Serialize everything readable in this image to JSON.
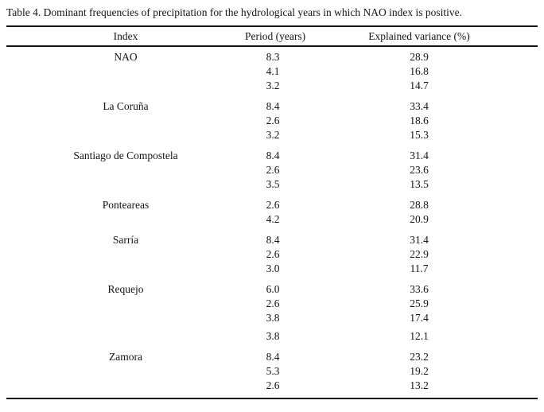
{
  "title": "Table 4. Dominant frequencies of precipitation for the hydrological years in which NAO index is positive.",
  "table": {
    "columns": [
      "Index",
      "Period (years)",
      "Explained variance (%)"
    ],
    "groups": [
      {
        "index": "NAO",
        "rows": [
          {
            "period": "8.3",
            "variance": "28.9"
          },
          {
            "period": "4.1",
            "variance": "16.8"
          },
          {
            "period": "3.2",
            "variance": "14.7"
          }
        ]
      },
      {
        "index": "La Coruña",
        "rows": [
          {
            "period": "8.4",
            "variance": "33.4"
          },
          {
            "period": "2.6",
            "variance": "18.6"
          },
          {
            "period": "3.2",
            "variance": "15.3"
          }
        ]
      },
      {
        "index": "Santiago de Compostela",
        "rows": [
          {
            "period": "8.4",
            "variance": "31.4"
          },
          {
            "period": "2.6",
            "variance": "23.6"
          },
          {
            "period": "3.5",
            "variance": "13.5"
          }
        ]
      },
      {
        "index": "Ponteareas",
        "rows": [
          {
            "period": "2.6",
            "variance": "28.8"
          },
          {
            "period": "4.2",
            "variance": "20.9"
          }
        ]
      },
      {
        "index": "Sarría",
        "rows": [
          {
            "period": "8.4",
            "variance": "31.4"
          },
          {
            "period": "2.6",
            "variance": "22.9"
          },
          {
            "period": "3.0",
            "variance": "11.7"
          }
        ]
      },
      {
        "index": "Requejo",
        "rows": [
          {
            "period": "6.0",
            "variance": "33.6"
          },
          {
            "period": "2.6",
            "variance": "25.9"
          },
          {
            "period": "3.8",
            "variance": "17.4"
          },
          {
            "period": "3.8",
            "variance": "12.1"
          }
        ]
      },
      {
        "index": "Zamora",
        "rows": [
          {
            "period": "8.4",
            "variance": "23.2"
          },
          {
            "period": "5.3",
            "variance": "19.2"
          },
          {
            "period": "2.6",
            "variance": "13.2"
          }
        ]
      }
    ]
  }
}
